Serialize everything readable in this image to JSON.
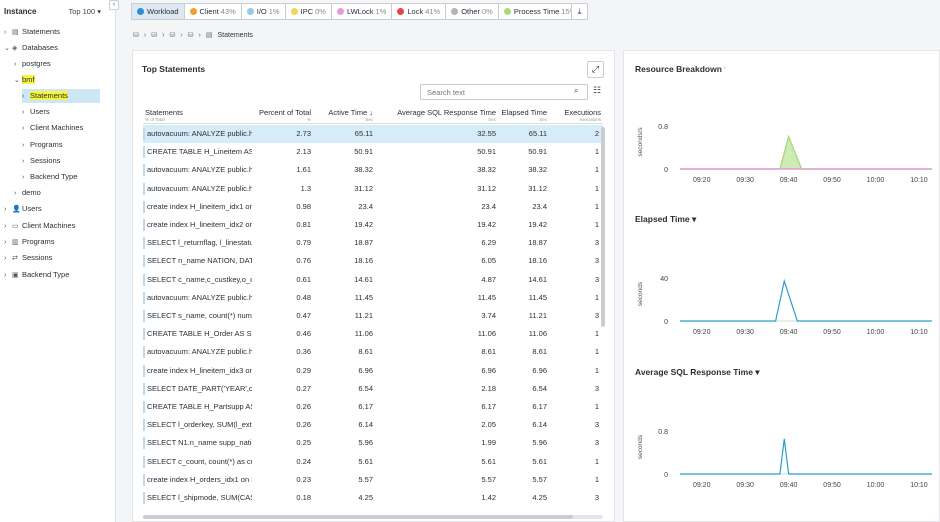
{
  "tree": {
    "title": "Instance",
    "top_selector": "Top 100 ▾",
    "nodes": [
      {
        "label": "Statements",
        "caret": "›",
        "icon": "▤",
        "indent": 0
      },
      {
        "label": "Databases",
        "caret": "⌄",
        "icon": "◈",
        "indent": 0
      },
      {
        "label": "postgres",
        "caret": "›",
        "icon": "",
        "indent": 1
      },
      {
        "label": "bmf",
        "caret": "⌄",
        "icon": "",
        "indent": 1
      },
      {
        "label": "Statements",
        "caret": "›",
        "icon": "",
        "indent": 2
      },
      {
        "label": "Users",
        "caret": "›",
        "icon": "",
        "indent": 2
      },
      {
        "label": "Client Machines",
        "caret": "›",
        "icon": "",
        "indent": 2
      },
      {
        "label": "Programs",
        "caret": "›",
        "icon": "",
        "indent": 2
      },
      {
        "label": "Sessions",
        "caret": "›",
        "icon": "",
        "indent": 2
      },
      {
        "label": "Backend Type",
        "caret": "›",
        "icon": "",
        "indent": 2
      },
      {
        "label": "demo",
        "caret": "›",
        "icon": "",
        "indent": 1
      },
      {
        "label": "Users",
        "caret": "›",
        "icon": "👤",
        "indent": 0
      },
      {
        "label": "Client Machines",
        "caret": "›",
        "icon": "▭",
        "indent": 0
      },
      {
        "label": "Programs",
        "caret": "›",
        "icon": "▥",
        "indent": 0
      },
      {
        "label": "Sessions",
        "caret": "›",
        "icon": "⇄",
        "indent": 0
      },
      {
        "label": "Backend Type",
        "caret": "›",
        "icon": "▣",
        "indent": 0
      }
    ]
  },
  "tabs": [
    {
      "label": "Workload",
      "pct": "",
      "color": "#2f8fd0"
    },
    {
      "label": "Client",
      "pct": "43%",
      "color": "#f0a030"
    },
    {
      "label": "I/O",
      "pct": "1%",
      "color": "#9ac8e8"
    },
    {
      "label": "IPC",
      "pct": "0%",
      "color": "#f2d45a"
    },
    {
      "label": "LWLock",
      "pct": "1%",
      "color": "#e79be0"
    },
    {
      "label": "Lock",
      "pct": "41%",
      "color": "#e0474c"
    },
    {
      "label": "Other",
      "pct": "0%",
      "color": "#b5b5b5"
    },
    {
      "label": "Process Time",
      "pct": "15%",
      "color": "#a9d97a"
    }
  ],
  "breadcrumb": {
    "current": "Statements"
  },
  "statements": {
    "title": "Top Statements",
    "search_placeholder": "Search text",
    "columns": [
      {
        "label": "Statements",
        "sub": "% of Total"
      },
      {
        "label": "Percent of Total",
        "sub": "%"
      },
      {
        "label": "Active Time ↓",
        "sub": "Sec"
      },
      {
        "label": "Average SQL Response Time",
        "sub": "Sec"
      },
      {
        "label": "Elapsed Time",
        "sub": "Sec"
      },
      {
        "label": "Executions",
        "sub": "executions"
      }
    ],
    "rows": [
      [
        "autovacuum: ANALYZE public.h",
        "2.73",
        "65.11",
        "32.55",
        "65.11",
        "2"
      ],
      [
        "CREATE TABLE H_Lineitem AS SE",
        "2.13",
        "50.91",
        "50.91",
        "50.91",
        "1"
      ],
      [
        "autovacuum: ANALYZE public.h",
        "1.61",
        "38.32",
        "38.32",
        "38.32",
        "1"
      ],
      [
        "autovacuum: ANALYZE public.h",
        "1.3",
        "31.12",
        "31.12",
        "31.12",
        "1"
      ],
      [
        "create index H_lineitem_idx1 on",
        "0.98",
        "23.4",
        "23.4",
        "23.4",
        "1"
      ],
      [
        "create index H_lineitem_idx2 on",
        "0.81",
        "19.42",
        "19.42",
        "19.42",
        "1"
      ],
      [
        "SELECT l_returnflag, l_linestatus",
        "0.79",
        "18.87",
        "6.29",
        "18.87",
        "3"
      ],
      [
        "SELECT n_name NATION, DATE_",
        "0.76",
        "18.16",
        "6.05",
        "18.16",
        "3"
      ],
      [
        "SELECT c_name,c_custkey,o_ord",
        "0.61",
        "14.61",
        "4.87",
        "14.61",
        "3"
      ],
      [
        "autovacuum: ANALYZE public.h",
        "0.48",
        "11.45",
        "11.45",
        "11.45",
        "1"
      ],
      [
        "SELECT s_name, count(*) numw",
        "0.47",
        "11.21",
        "3.74",
        "11.21",
        "3"
      ],
      [
        "CREATE TABLE H_Order AS SELE",
        "0.46",
        "11.06",
        "11.06",
        "11.06",
        "1"
      ],
      [
        "autovacuum: ANALYZE public.h",
        "0.36",
        "8.61",
        "8.61",
        "8.61",
        "1"
      ],
      [
        "create index H_lineitem_idx3 on",
        "0.29",
        "6.96",
        "6.96",
        "6.96",
        "1"
      ],
      [
        "SELECT DATE_PART('YEAR',o_ord",
        "0.27",
        "6.54",
        "2.18",
        "6.54",
        "3"
      ],
      [
        "CREATE TABLE H_Partsupp AS S",
        "0.26",
        "6.17",
        "6.17",
        "6.17",
        "1"
      ],
      [
        "SELECT l_orderkey, SUM(l_exter",
        "0.26",
        "6.14",
        "2.05",
        "6.14",
        "3"
      ],
      [
        "SELECT N1.n_name supp_natior",
        "0.25",
        "5.96",
        "1.99",
        "5.96",
        "3"
      ],
      [
        "SELECT c_count, count(*) as cus",
        "0.24",
        "5.61",
        "5.61",
        "5.61",
        "1"
      ],
      [
        "create index H_orders_idx1 on H",
        "0.23",
        "5.57",
        "5.57",
        "5.57",
        "1"
      ],
      [
        "SELECT l_shipmode, SUM(CASE",
        "0.18",
        "4.25",
        "1.42",
        "4.25",
        "3"
      ]
    ]
  },
  "charts": {
    "resource": {
      "title": "Resource Breakdown",
      "info": "ⁱ",
      "ylabel": "seconds/s",
      "yticks": [
        "0.8",
        "0"
      ]
    },
    "elapsed": {
      "title": "Elapsed Time ▾",
      "ylabel": "seconds",
      "yticks": [
        "40",
        "0"
      ]
    },
    "avg": {
      "title": "Average SQL Response Time ▾",
      "ylabel": "seconds",
      "yticks": [
        "0.8",
        "0"
      ]
    }
  },
  "chart_data": [
    {
      "type": "area",
      "title": "Resource Breakdown",
      "ylabel": "seconds/s",
      "x": [
        "09:15",
        "09:20",
        "09:25",
        "09:30",
        "09:35",
        "09:38",
        "09:40",
        "09:43",
        "09:45",
        "09:50",
        "10:00",
        "10:10",
        "10:13"
      ],
      "xticks": [
        "09:20",
        "09:30",
        "09:40",
        "09:50",
        "10:00",
        "10:10"
      ],
      "series": [
        {
          "values": [
            0,
            0,
            0,
            0,
            0,
            0,
            0.6,
            0,
            0,
            0,
            0,
            0,
            0
          ],
          "color": "#a9d97a"
        },
        {
          "values": [
            0,
            0,
            0,
            0,
            0,
            0,
            0.01,
            0,
            0,
            0,
            0,
            0,
            0
          ],
          "color": "#e79be0"
        }
      ],
      "ylim": [
        0,
        1.0
      ]
    },
    {
      "type": "line",
      "title": "Elapsed Time",
      "ylabel": "seconds",
      "x": [
        "09:15",
        "09:20",
        "09:25",
        "09:30",
        "09:35",
        "09:37",
        "09:39",
        "09:42",
        "09:45",
        "09:50",
        "10:00",
        "10:10",
        "10:13"
      ],
      "xticks": [
        "09:20",
        "09:30",
        "09:40",
        "09:50",
        "10:00",
        "10:10"
      ],
      "series": [
        {
          "values": [
            0,
            0,
            0,
            0,
            0,
            0,
            37,
            0,
            0,
            0,
            0,
            0,
            0
          ],
          "color": "#2a9fc6"
        }
      ],
      "ylim": [
        0,
        50
      ]
    },
    {
      "type": "line",
      "title": "Average SQL Response Time",
      "ylabel": "seconds",
      "x": [
        "09:15",
        "09:20",
        "09:25",
        "09:30",
        "09:35",
        "09:38",
        "09:39",
        "09:40",
        "09:45",
        "09:50",
        "10:00",
        "10:10",
        "10:13"
      ],
      "xticks": [
        "09:20",
        "09:30",
        "09:40",
        "09:50",
        "10:00",
        "10:10"
      ],
      "series": [
        {
          "values": [
            0,
            0,
            0,
            0,
            0,
            0,
            0.65,
            0,
            0,
            0,
            0,
            0,
            0
          ],
          "color": "#2a9fc6"
        }
      ],
      "ylim": [
        0,
        1.0
      ]
    }
  ]
}
